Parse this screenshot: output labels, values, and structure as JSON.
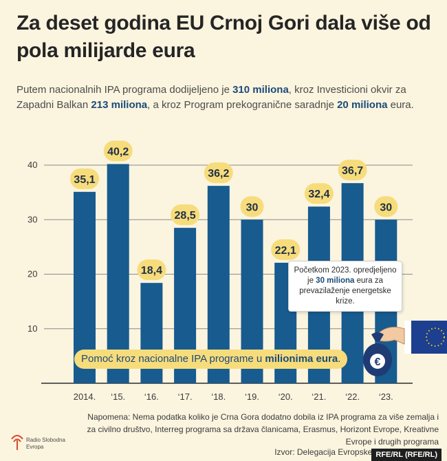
{
  "title": "Za deset godina EU Crnoj Gori dala više od pola milijarde eura",
  "subtitle": {
    "p1": "Putem nacionalnih IPA programa dodijeljeno je ",
    "b1": "310 miliona",
    "p2": ", kroz Investicioni okvir za Zapadni Balkan ",
    "b2": "213 miliona",
    "p3": ", a kroz Program prekogranične saradnje ",
    "b3": "20 miliona",
    "p4": " eura."
  },
  "callout": {
    "p1": "Početkom 2023. opredjeljeno je ",
    "b1": "30 miliona",
    "p2": " eura za prevazilaženje energetske krize."
  },
  "banner": {
    "p1": "Pomoć kroz nacionalne IPA programe u ",
    "b1": "milionima eura",
    "p2": "."
  },
  "note": "Napomena: Nema podatka koliko je Crna Gora dodatno dobila iz IPA programa za više zemalja i za civilno društvo, Interreg programa sa država članicama, Erasmus, Horizont Evrope, Kreativne Evrope i drugih programa",
  "source": "Izvor: Delegacija Evropske unije u Crnoj Gori",
  "credit": "RFE/RL (RFE/RL)",
  "logo_text": "Radio Slobodna Evropa",
  "colors": {
    "bar": "#175b8f",
    "label_bg": "#f7dc7c",
    "background": "#fbf4df",
    "grid": "#8a8a8a"
  },
  "chart_data": {
    "type": "bar",
    "categories": [
      "2014.",
      "‘15.",
      "‘16.",
      "‘17.",
      "‘18.",
      "‘19.",
      "‘20.",
      "‘21.",
      "‘22.",
      "‘23."
    ],
    "values": [
      35.1,
      40.2,
      18.4,
      28.5,
      36.2,
      30,
      22.1,
      32.4,
      36.7,
      30
    ],
    "labels": [
      "35,1",
      "40,2",
      "18,4",
      "28,5",
      "36,2",
      "30",
      "22,1",
      "32,4",
      "36,7",
      "30"
    ],
    "yticks": [
      "10",
      "20",
      "30",
      "40"
    ],
    "ylim": [
      0,
      45
    ],
    "grid": true
  }
}
